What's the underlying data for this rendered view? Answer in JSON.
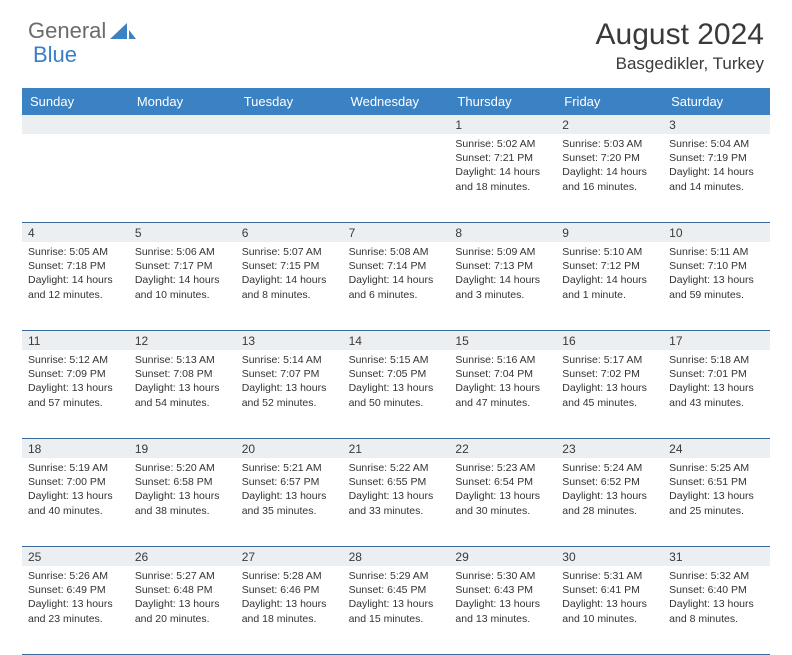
{
  "brand": {
    "general": "General",
    "blue": "Blue",
    "logo_color": "#3a82c4"
  },
  "title": "August 2024",
  "location": "Basgedikler, Turkey",
  "colors": {
    "header_bg": "#3a82c4",
    "header_text": "#ffffff",
    "daynum_bg": "#eceff1",
    "border": "#3a6a9a",
    "text": "#333333"
  },
  "day_labels": [
    "Sunday",
    "Monday",
    "Tuesday",
    "Wednesday",
    "Thursday",
    "Friday",
    "Saturday"
  ],
  "weeks": [
    [
      {
        "n": "",
        "sr": "",
        "ss": "",
        "dl1": "",
        "dl2": ""
      },
      {
        "n": "",
        "sr": "",
        "ss": "",
        "dl1": "",
        "dl2": ""
      },
      {
        "n": "",
        "sr": "",
        "ss": "",
        "dl1": "",
        "dl2": ""
      },
      {
        "n": "",
        "sr": "",
        "ss": "",
        "dl1": "",
        "dl2": ""
      },
      {
        "n": "1",
        "sr": "Sunrise: 5:02 AM",
        "ss": "Sunset: 7:21 PM",
        "dl1": "Daylight: 14 hours",
        "dl2": "and 18 minutes."
      },
      {
        "n": "2",
        "sr": "Sunrise: 5:03 AM",
        "ss": "Sunset: 7:20 PM",
        "dl1": "Daylight: 14 hours",
        "dl2": "and 16 minutes."
      },
      {
        "n": "3",
        "sr": "Sunrise: 5:04 AM",
        "ss": "Sunset: 7:19 PM",
        "dl1": "Daylight: 14 hours",
        "dl2": "and 14 minutes."
      }
    ],
    [
      {
        "n": "4",
        "sr": "Sunrise: 5:05 AM",
        "ss": "Sunset: 7:18 PM",
        "dl1": "Daylight: 14 hours",
        "dl2": "and 12 minutes."
      },
      {
        "n": "5",
        "sr": "Sunrise: 5:06 AM",
        "ss": "Sunset: 7:17 PM",
        "dl1": "Daylight: 14 hours",
        "dl2": "and 10 minutes."
      },
      {
        "n": "6",
        "sr": "Sunrise: 5:07 AM",
        "ss": "Sunset: 7:15 PM",
        "dl1": "Daylight: 14 hours",
        "dl2": "and 8 minutes."
      },
      {
        "n": "7",
        "sr": "Sunrise: 5:08 AM",
        "ss": "Sunset: 7:14 PM",
        "dl1": "Daylight: 14 hours",
        "dl2": "and 6 minutes."
      },
      {
        "n": "8",
        "sr": "Sunrise: 5:09 AM",
        "ss": "Sunset: 7:13 PM",
        "dl1": "Daylight: 14 hours",
        "dl2": "and 3 minutes."
      },
      {
        "n": "9",
        "sr": "Sunrise: 5:10 AM",
        "ss": "Sunset: 7:12 PM",
        "dl1": "Daylight: 14 hours",
        "dl2": "and 1 minute."
      },
      {
        "n": "10",
        "sr": "Sunrise: 5:11 AM",
        "ss": "Sunset: 7:10 PM",
        "dl1": "Daylight: 13 hours",
        "dl2": "and 59 minutes."
      }
    ],
    [
      {
        "n": "11",
        "sr": "Sunrise: 5:12 AM",
        "ss": "Sunset: 7:09 PM",
        "dl1": "Daylight: 13 hours",
        "dl2": "and 57 minutes."
      },
      {
        "n": "12",
        "sr": "Sunrise: 5:13 AM",
        "ss": "Sunset: 7:08 PM",
        "dl1": "Daylight: 13 hours",
        "dl2": "and 54 minutes."
      },
      {
        "n": "13",
        "sr": "Sunrise: 5:14 AM",
        "ss": "Sunset: 7:07 PM",
        "dl1": "Daylight: 13 hours",
        "dl2": "and 52 minutes."
      },
      {
        "n": "14",
        "sr": "Sunrise: 5:15 AM",
        "ss": "Sunset: 7:05 PM",
        "dl1": "Daylight: 13 hours",
        "dl2": "and 50 minutes."
      },
      {
        "n": "15",
        "sr": "Sunrise: 5:16 AM",
        "ss": "Sunset: 7:04 PM",
        "dl1": "Daylight: 13 hours",
        "dl2": "and 47 minutes."
      },
      {
        "n": "16",
        "sr": "Sunrise: 5:17 AM",
        "ss": "Sunset: 7:02 PM",
        "dl1": "Daylight: 13 hours",
        "dl2": "and 45 minutes."
      },
      {
        "n": "17",
        "sr": "Sunrise: 5:18 AM",
        "ss": "Sunset: 7:01 PM",
        "dl1": "Daylight: 13 hours",
        "dl2": "and 43 minutes."
      }
    ],
    [
      {
        "n": "18",
        "sr": "Sunrise: 5:19 AM",
        "ss": "Sunset: 7:00 PM",
        "dl1": "Daylight: 13 hours",
        "dl2": "and 40 minutes."
      },
      {
        "n": "19",
        "sr": "Sunrise: 5:20 AM",
        "ss": "Sunset: 6:58 PM",
        "dl1": "Daylight: 13 hours",
        "dl2": "and 38 minutes."
      },
      {
        "n": "20",
        "sr": "Sunrise: 5:21 AM",
        "ss": "Sunset: 6:57 PM",
        "dl1": "Daylight: 13 hours",
        "dl2": "and 35 minutes."
      },
      {
        "n": "21",
        "sr": "Sunrise: 5:22 AM",
        "ss": "Sunset: 6:55 PM",
        "dl1": "Daylight: 13 hours",
        "dl2": "and 33 minutes."
      },
      {
        "n": "22",
        "sr": "Sunrise: 5:23 AM",
        "ss": "Sunset: 6:54 PM",
        "dl1": "Daylight: 13 hours",
        "dl2": "and 30 minutes."
      },
      {
        "n": "23",
        "sr": "Sunrise: 5:24 AM",
        "ss": "Sunset: 6:52 PM",
        "dl1": "Daylight: 13 hours",
        "dl2": "and 28 minutes."
      },
      {
        "n": "24",
        "sr": "Sunrise: 5:25 AM",
        "ss": "Sunset: 6:51 PM",
        "dl1": "Daylight: 13 hours",
        "dl2": "and 25 minutes."
      }
    ],
    [
      {
        "n": "25",
        "sr": "Sunrise: 5:26 AM",
        "ss": "Sunset: 6:49 PM",
        "dl1": "Daylight: 13 hours",
        "dl2": "and 23 minutes."
      },
      {
        "n": "26",
        "sr": "Sunrise: 5:27 AM",
        "ss": "Sunset: 6:48 PM",
        "dl1": "Daylight: 13 hours",
        "dl2": "and 20 minutes."
      },
      {
        "n": "27",
        "sr": "Sunrise: 5:28 AM",
        "ss": "Sunset: 6:46 PM",
        "dl1": "Daylight: 13 hours",
        "dl2": "and 18 minutes."
      },
      {
        "n": "28",
        "sr": "Sunrise: 5:29 AM",
        "ss": "Sunset: 6:45 PM",
        "dl1": "Daylight: 13 hours",
        "dl2": "and 15 minutes."
      },
      {
        "n": "29",
        "sr": "Sunrise: 5:30 AM",
        "ss": "Sunset: 6:43 PM",
        "dl1": "Daylight: 13 hours",
        "dl2": "and 13 minutes."
      },
      {
        "n": "30",
        "sr": "Sunrise: 5:31 AM",
        "ss": "Sunset: 6:41 PM",
        "dl1": "Daylight: 13 hours",
        "dl2": "and 10 minutes."
      },
      {
        "n": "31",
        "sr": "Sunrise: 5:32 AM",
        "ss": "Sunset: 6:40 PM",
        "dl1": "Daylight: 13 hours",
        "dl2": "and 8 minutes."
      }
    ]
  ]
}
